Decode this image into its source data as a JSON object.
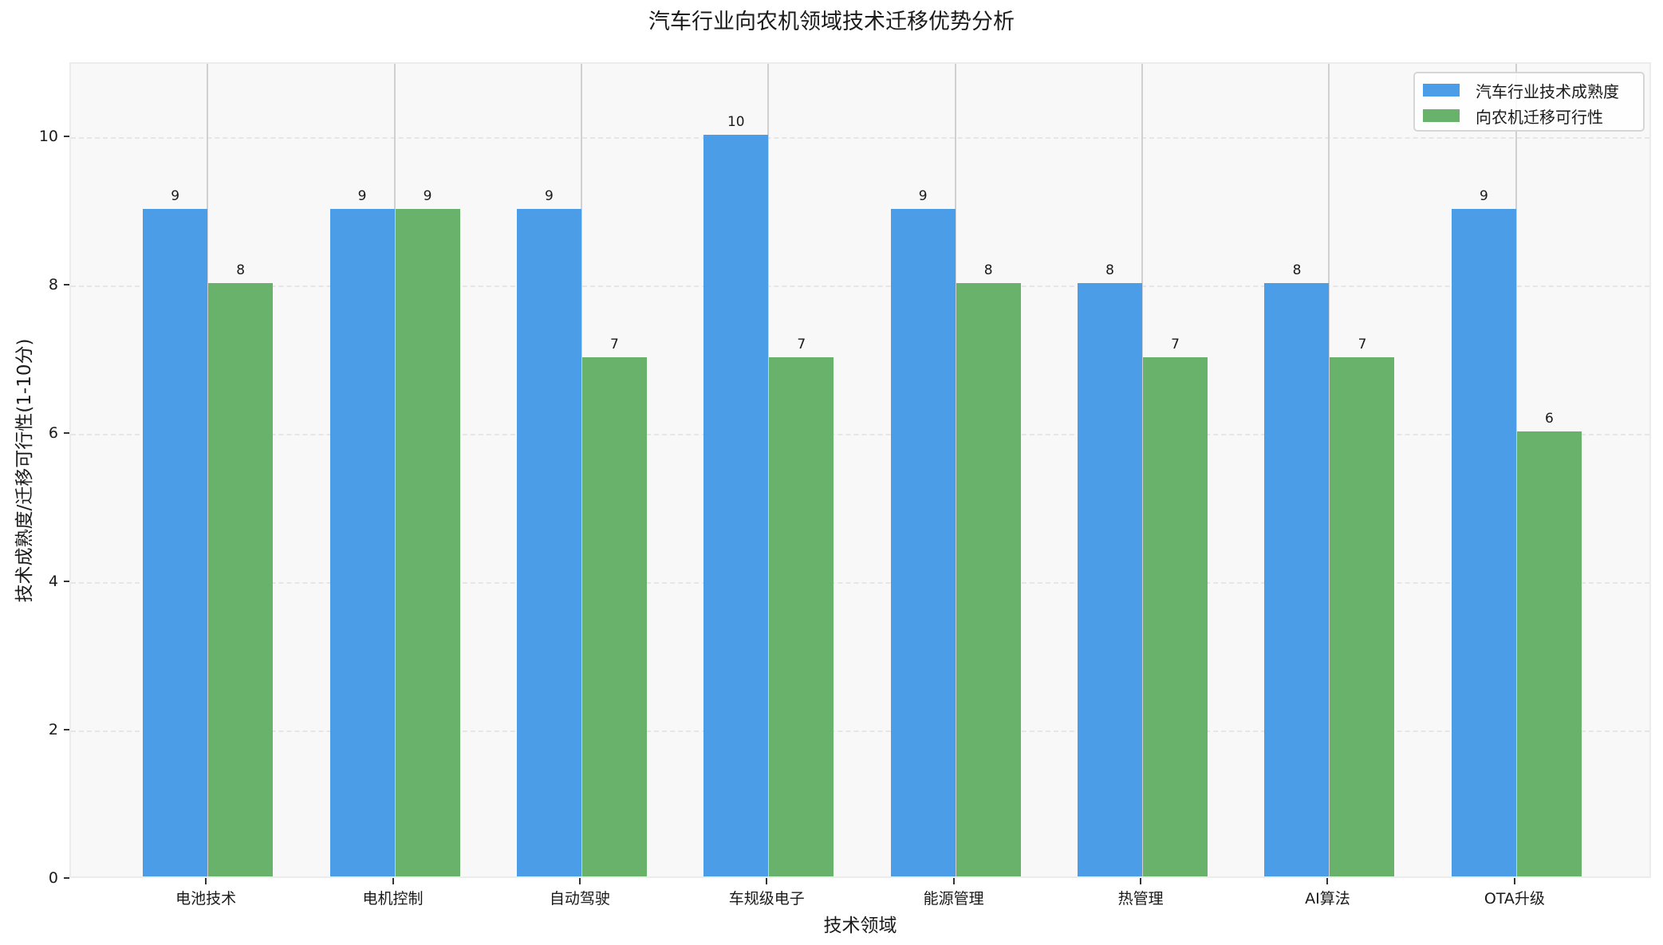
{
  "chart_data": {
    "type": "bar",
    "title": "汽车行业向农机领域技术迁移优势分析",
    "xlabel": "技术领域",
    "ylabel": "技术成熟度/迁移可行性(1-10分)",
    "categories": [
      "电池技术",
      "电机控制",
      "自动驾驶",
      "车规级电子",
      "能源管理",
      "热管理",
      "AI算法",
      "OTA升级"
    ],
    "series": [
      {
        "name": "汽车行业技术成熟度",
        "color": "#4a9de6",
        "values": [
          9,
          9,
          9,
          10,
          9,
          8,
          8,
          9
        ]
      },
      {
        "name": "向农机迁移可行性",
        "color": "#69b26c",
        "values": [
          8,
          9,
          7,
          7,
          8,
          7,
          7,
          6
        ]
      }
    ],
    "ylim": [
      0,
      11
    ],
    "yticks": [
      0,
      2,
      4,
      6,
      8,
      10
    ],
    "grid": "y dashed",
    "legend_position": "upper right",
    "data_labels": true
  },
  "ui": {
    "yticks": [
      "0",
      "2",
      "4",
      "6",
      "8",
      "10"
    ]
  }
}
